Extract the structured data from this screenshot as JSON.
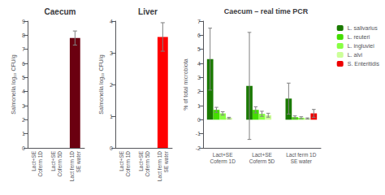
{
  "chart_data": [
    {
      "type": "bar",
      "title": "Caecum",
      "categories": [
        "Lact+SE\nCoferm 1D",
        "Lact+SE\nCoferm 5D",
        "Lact ferm 1D\nSE water"
      ],
      "values": [
        0,
        0,
        7.8
      ],
      "errors": [
        0,
        0,
        0.5
      ],
      "color": "#6B0010",
      "ylabel": "Salmonella log₁₀ CFU/g",
      "ylim": [
        0,
        9
      ],
      "yticks": [
        0,
        1,
        2,
        3,
        4,
        5,
        6,
        7,
        8,
        9
      ],
      "grid": false
    },
    {
      "type": "bar",
      "title": "Liver",
      "categories": [
        "Lact+SE\nCoferm 1D",
        "Lact+SE\nCoferm 5D",
        "Lact ferm 1D\nSE water"
      ],
      "values": [
        0,
        0,
        3.5
      ],
      "errors": [
        0,
        0,
        0.45
      ],
      "color": "#FF0000",
      "ylabel": "Salmonella log₁₀ CFU/g",
      "ylim": [
        0,
        4
      ],
      "yticks": [
        0,
        1,
        2,
        3,
        4
      ],
      "grid": false
    },
    {
      "type": "bar",
      "title": "Caecum – real time PCR",
      "categories": [
        "Lact+SE\nCoferm 1D",
        "Lact+SE\nCoferm 5D",
        "Lact ferm 1D\nSE water"
      ],
      "series": [
        {
          "name": "L. salivarius",
          "color": "#1A7A00",
          "values": [
            4.3,
            2.4,
            1.5
          ],
          "errors": [
            2.2,
            3.8,
            1.1
          ]
        },
        {
          "name": "L. reuteri",
          "color": "#44DD00",
          "values": [
            0.7,
            0.7,
            0.18
          ],
          "errors": [
            0.18,
            0.22,
            0.09
          ]
        },
        {
          "name": "L. ingluviei",
          "color": "#88FF44",
          "values": [
            0.45,
            0.42,
            0.14
          ],
          "errors": [
            0.12,
            0.18,
            0.07
          ]
        },
        {
          "name": "L. alvi",
          "color": "#CCFF99",
          "values": [
            0.12,
            0.32,
            0.09
          ],
          "errors": [
            0.05,
            0.14,
            0.04
          ]
        },
        {
          "name": "S. Enteritidis",
          "color": "#EE0000",
          "values": [
            0.0,
            0.0,
            0.45
          ],
          "errors": [
            0.0,
            0.0,
            0.28
          ]
        }
      ],
      "ylabel": "% of total microbiota",
      "ylim": [
        -2,
        7
      ],
      "yticks": [
        -2,
        -1,
        0,
        1,
        2,
        3,
        4,
        5,
        6,
        7
      ],
      "grid": false,
      "legend": "upper right"
    }
  ]
}
